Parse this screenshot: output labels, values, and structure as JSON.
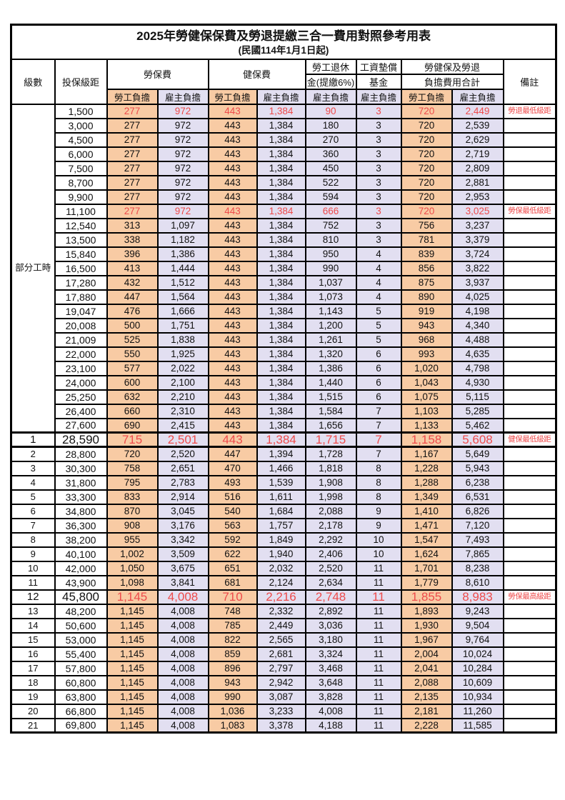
{
  "title": "2025年勞健保保費及勞退提繳三合一費用對照參考用表",
  "subtitle": "(民國114年1月1日起)",
  "header": {
    "level": "級數",
    "bracket": "投保級距",
    "labor_insurance": "勞保費",
    "health_insurance": "健保費",
    "pension_line1": "勞工退休",
    "pension_line2": "金(提繳6%)",
    "wage_fund_line1": "工資墊償",
    "wage_fund_line2": "基金",
    "total_line1": "勞健保及勞退",
    "total_line2": "負擔費用合計",
    "remark": "備註",
    "employee_share": "勞工負擔",
    "employer_share": "雇主負擔"
  },
  "part_time": {
    "label": "部分工時",
    "row_span": 23
  },
  "colors": {
    "employee_col_bg": "#F8CBA4",
    "employer_col_bg": "#E2DFF1",
    "highlight_text": "#EE4B4B",
    "border": "#000000"
  },
  "rows": [
    {
      "part_time_start": true,
      "level": null,
      "bracket": "1,500",
      "values": [
        "277",
        "972",
        "443",
        "1,384",
        "90",
        "3",
        "720",
        "2,449"
      ],
      "remark": "勞退最低級距",
      "flags": "red"
    },
    {
      "level": null,
      "bracket": "3,000",
      "values": [
        "277",
        "972",
        "443",
        "1,384",
        "180",
        "3",
        "720",
        "2,539"
      ],
      "remark": "",
      "flags": ""
    },
    {
      "level": null,
      "bracket": "4,500",
      "values": [
        "277",
        "972",
        "443",
        "1,384",
        "270",
        "3",
        "720",
        "2,629"
      ],
      "remark": "",
      "flags": ""
    },
    {
      "level": null,
      "bracket": "6,000",
      "values": [
        "277",
        "972",
        "443",
        "1,384",
        "360",
        "3",
        "720",
        "2,719"
      ],
      "remark": "",
      "flags": ""
    },
    {
      "level": null,
      "bracket": "7,500",
      "values": [
        "277",
        "972",
        "443",
        "1,384",
        "450",
        "3",
        "720",
        "2,809"
      ],
      "remark": "",
      "flags": ""
    },
    {
      "level": null,
      "bracket": "8,700",
      "values": [
        "277",
        "972",
        "443",
        "1,384",
        "522",
        "3",
        "720",
        "2,881"
      ],
      "remark": "",
      "flags": ""
    },
    {
      "level": null,
      "bracket": "9,900",
      "values": [
        "277",
        "972",
        "443",
        "1,384",
        "594",
        "3",
        "720",
        "2,953"
      ],
      "remark": "",
      "flags": ""
    },
    {
      "level": null,
      "bracket": "11,100",
      "values": [
        "277",
        "972",
        "443",
        "1,384",
        "666",
        "3",
        "720",
        "3,025"
      ],
      "remark": "勞保最低級距",
      "flags": "red"
    },
    {
      "level": null,
      "bracket": "12,540",
      "values": [
        "313",
        "1,097",
        "443",
        "1,384",
        "752",
        "3",
        "756",
        "3,237"
      ],
      "remark": "",
      "flags": ""
    },
    {
      "level": null,
      "bracket": "13,500",
      "values": [
        "338",
        "1,182",
        "443",
        "1,384",
        "810",
        "3",
        "781",
        "3,379"
      ],
      "remark": "",
      "flags": ""
    },
    {
      "level": null,
      "bracket": "15,840",
      "values": [
        "396",
        "1,386",
        "443",
        "1,384",
        "950",
        "4",
        "839",
        "3,724"
      ],
      "remark": "",
      "flags": ""
    },
    {
      "level": null,
      "bracket": "16,500",
      "values": [
        "413",
        "1,444",
        "443",
        "1,384",
        "990",
        "4",
        "856",
        "3,822"
      ],
      "remark": "",
      "flags": ""
    },
    {
      "level": null,
      "bracket": "17,280",
      "values": [
        "432",
        "1,512",
        "443",
        "1,384",
        "1,037",
        "4",
        "875",
        "3,937"
      ],
      "remark": "",
      "flags": ""
    },
    {
      "level": null,
      "bracket": "17,880",
      "values": [
        "447",
        "1,564",
        "443",
        "1,384",
        "1,073",
        "4",
        "890",
        "4,025"
      ],
      "remark": "",
      "flags": ""
    },
    {
      "level": null,
      "bracket": "19,047",
      "values": [
        "476",
        "1,666",
        "443",
        "1,384",
        "1,143",
        "5",
        "919",
        "4,198"
      ],
      "remark": "",
      "flags": ""
    },
    {
      "level": null,
      "bracket": "20,008",
      "values": [
        "500",
        "1,751",
        "443",
        "1,384",
        "1,200",
        "5",
        "943",
        "4,340"
      ],
      "remark": "",
      "flags": ""
    },
    {
      "level": null,
      "bracket": "21,009",
      "values": [
        "525",
        "1,838",
        "443",
        "1,384",
        "1,261",
        "5",
        "968",
        "4,488"
      ],
      "remark": "",
      "flags": ""
    },
    {
      "level": null,
      "bracket": "22,000",
      "values": [
        "550",
        "1,925",
        "443",
        "1,384",
        "1,320",
        "6",
        "993",
        "4,635"
      ],
      "remark": "",
      "flags": ""
    },
    {
      "level": null,
      "bracket": "23,100",
      "values": [
        "577",
        "2,022",
        "443",
        "1,384",
        "1,386",
        "6",
        "1,020",
        "4,798"
      ],
      "remark": "",
      "flags": ""
    },
    {
      "level": null,
      "bracket": "24,000",
      "values": [
        "600",
        "2,100",
        "443",
        "1,384",
        "1,440",
        "6",
        "1,043",
        "4,930"
      ],
      "remark": "",
      "flags": ""
    },
    {
      "level": null,
      "bracket": "25,250",
      "values": [
        "632",
        "2,210",
        "443",
        "1,384",
        "1,515",
        "6",
        "1,075",
        "5,115"
      ],
      "remark": "",
      "flags": ""
    },
    {
      "level": null,
      "bracket": "26,400",
      "values": [
        "660",
        "2,310",
        "443",
        "1,384",
        "1,584",
        "7",
        "1,103",
        "5,285"
      ],
      "remark": "",
      "flags": ""
    },
    {
      "level": null,
      "bracket": "27,600",
      "values": [
        "690",
        "2,415",
        "443",
        "1,384",
        "1,656",
        "7",
        "1,133",
        "5,462"
      ],
      "remark": "",
      "flags": ""
    },
    {
      "level": "1",
      "bracket": "28,590",
      "values": [
        "715",
        "2,501",
        "443",
        "1,384",
        "1,715",
        "7",
        "1,158",
        "5,608"
      ],
      "remark": "健保最低級距",
      "flags": "red big sep"
    },
    {
      "level": "2",
      "bracket": "28,800",
      "values": [
        "720",
        "2,520",
        "447",
        "1,394",
        "1,728",
        "7",
        "1,167",
        "5,649"
      ],
      "remark": "",
      "flags": ""
    },
    {
      "level": "3",
      "bracket": "30,300",
      "values": [
        "758",
        "2,651",
        "470",
        "1,466",
        "1,818",
        "8",
        "1,228",
        "5,943"
      ],
      "remark": "",
      "flags": ""
    },
    {
      "level": "4",
      "bracket": "31,800",
      "values": [
        "795",
        "2,783",
        "493",
        "1,539",
        "1,908",
        "8",
        "1,288",
        "6,238"
      ],
      "remark": "",
      "flags": ""
    },
    {
      "level": "5",
      "bracket": "33,300",
      "values": [
        "833",
        "2,914",
        "516",
        "1,611",
        "1,998",
        "8",
        "1,349",
        "6,531"
      ],
      "remark": "",
      "flags": ""
    },
    {
      "level": "6",
      "bracket": "34,800",
      "values": [
        "870",
        "3,045",
        "540",
        "1,684",
        "2,088",
        "9",
        "1,410",
        "6,826"
      ],
      "remark": "",
      "flags": ""
    },
    {
      "level": "7",
      "bracket": "36,300",
      "values": [
        "908",
        "3,176",
        "563",
        "1,757",
        "2,178",
        "9",
        "1,471",
        "7,120"
      ],
      "remark": "",
      "flags": ""
    },
    {
      "level": "8",
      "bracket": "38,200",
      "values": [
        "955",
        "3,342",
        "592",
        "1,849",
        "2,292",
        "10",
        "1,547",
        "7,493"
      ],
      "remark": "",
      "flags": ""
    },
    {
      "level": "9",
      "bracket": "40,100",
      "values": [
        "1,002",
        "3,509",
        "622",
        "1,940",
        "2,406",
        "10",
        "1,624",
        "7,865"
      ],
      "remark": "",
      "flags": ""
    },
    {
      "level": "10",
      "bracket": "42,000",
      "values": [
        "1,050",
        "3,675",
        "651",
        "2,032",
        "2,520",
        "11",
        "1,701",
        "8,238"
      ],
      "remark": "",
      "flags": ""
    },
    {
      "level": "11",
      "bracket": "43,900",
      "values": [
        "1,098",
        "3,841",
        "681",
        "2,124",
        "2,634",
        "11",
        "1,779",
        "8,610"
      ],
      "remark": "",
      "flags": ""
    },
    {
      "level": "12",
      "bracket": "45,800",
      "values": [
        "1,145",
        "4,008",
        "710",
        "2,216",
        "2,748",
        "11",
        "1,855",
        "8,983"
      ],
      "remark": "勞保最高級距",
      "flags": "red big"
    },
    {
      "level": "13",
      "bracket": "48,200",
      "values": [
        "1,145",
        "4,008",
        "748",
        "2,332",
        "2,892",
        "11",
        "1,893",
        "9,243"
      ],
      "remark": "",
      "flags": ""
    },
    {
      "level": "14",
      "bracket": "50,600",
      "values": [
        "1,145",
        "4,008",
        "785",
        "2,449",
        "3,036",
        "11",
        "1,930",
        "9,504"
      ],
      "remark": "",
      "flags": ""
    },
    {
      "level": "15",
      "bracket": "53,000",
      "values": [
        "1,145",
        "4,008",
        "822",
        "2,565",
        "3,180",
        "11",
        "1,967",
        "9,764"
      ],
      "remark": "",
      "flags": ""
    },
    {
      "level": "16",
      "bracket": "55,400",
      "values": [
        "1,145",
        "4,008",
        "859",
        "2,681",
        "3,324",
        "11",
        "2,004",
        "10,024"
      ],
      "remark": "",
      "flags": ""
    },
    {
      "level": "17",
      "bracket": "57,800",
      "values": [
        "1,145",
        "4,008",
        "896",
        "2,797",
        "3,468",
        "11",
        "2,041",
        "10,284"
      ],
      "remark": "",
      "flags": ""
    },
    {
      "level": "18",
      "bracket": "60,800",
      "values": [
        "1,145",
        "4,008",
        "943",
        "2,942",
        "3,648",
        "11",
        "2,088",
        "10,609"
      ],
      "remark": "",
      "flags": ""
    },
    {
      "level": "19",
      "bracket": "63,800",
      "values": [
        "1,145",
        "4,008",
        "990",
        "3,087",
        "3,828",
        "11",
        "2,135",
        "10,934"
      ],
      "remark": "",
      "flags": ""
    },
    {
      "level": "20",
      "bracket": "66,800",
      "values": [
        "1,145",
        "4,008",
        "1,036",
        "3,233",
        "4,008",
        "11",
        "2,181",
        "11,260"
      ],
      "remark": "",
      "flags": ""
    },
    {
      "level": "21",
      "bracket": "69,800",
      "values": [
        "1,145",
        "4,008",
        "1,083",
        "3,378",
        "4,188",
        "11",
        "2,228",
        "11,585"
      ],
      "remark": "",
      "flags": ""
    }
  ]
}
